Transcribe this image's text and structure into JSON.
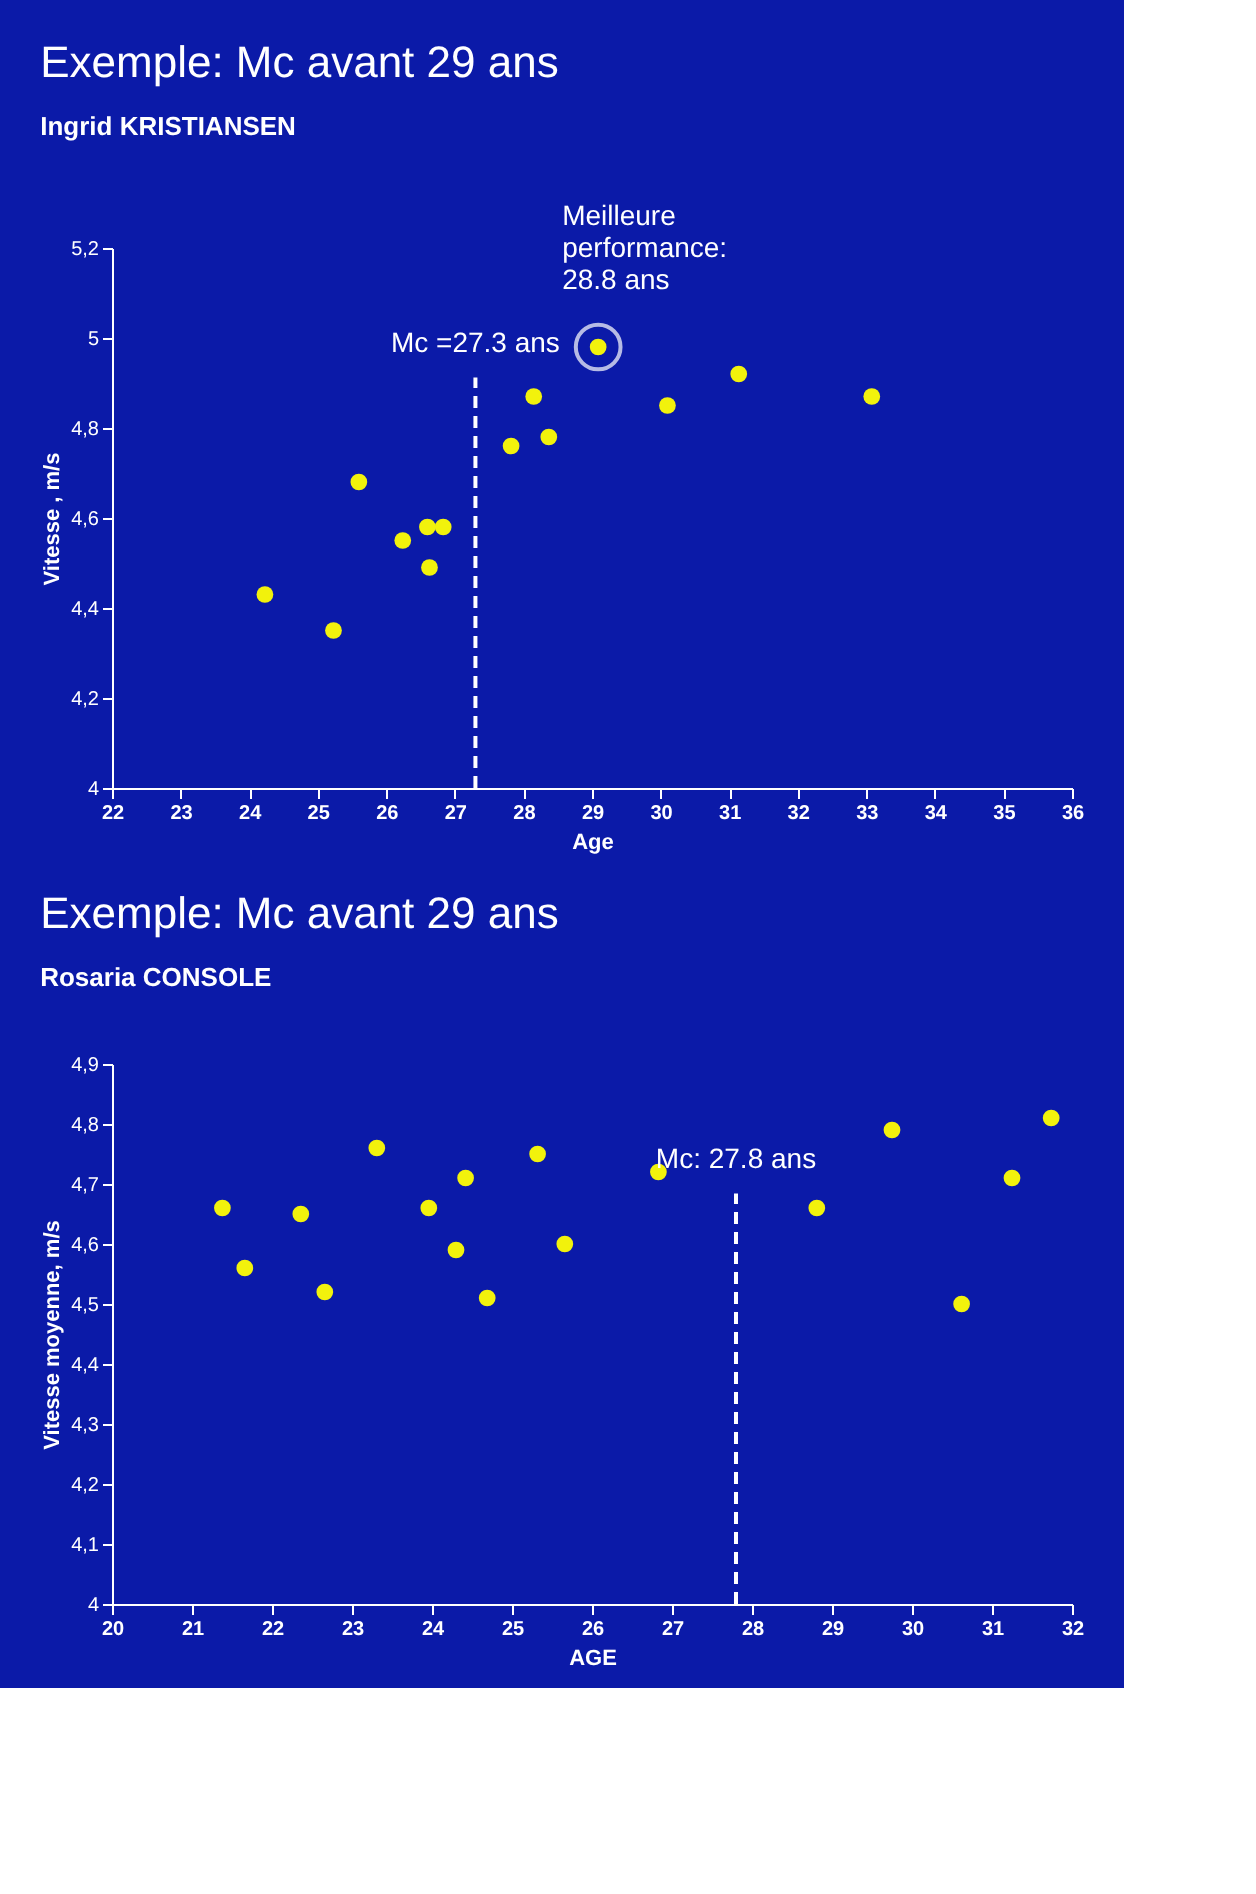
{
  "chart_data": [
    {
      "type": "scatter",
      "title": "Exemple: Mc avant 29 ans",
      "subtitle": "Ingrid KRISTIANSEN",
      "xlabel": "Age",
      "ylabel": "Vitesse , m/s",
      "x": [
        24.23,
        25.23,
        25.6,
        26.24,
        26.6,
        26.63,
        26.83,
        27.82,
        28.15,
        28.37,
        29.09,
        30.1,
        31.14,
        33.08
      ],
      "series": [
        {
          "color": "#f2f20c",
          "values": [
            4.43,
            4.35,
            4.68,
            4.55,
            4.58,
            4.49,
            4.58,
            4.76,
            4.87,
            4.78,
            4.98,
            4.85,
            4.92,
            4.87
          ]
        }
      ],
      "xlim": [
        22,
        36
      ],
      "xticks": [
        22,
        23,
        24,
        25,
        26,
        27,
        28,
        29,
        30,
        31,
        32,
        33,
        34,
        35,
        36
      ],
      "ylim": [
        4,
        5.2
      ],
      "yticks": [
        {
          "value": 4,
          "label": "4"
        },
        {
          "value": 4.2,
          "label": "4,2"
        },
        {
          "value": 4.4,
          "label": "4,4"
        },
        {
          "value": 4.6,
          "label": "4,6"
        },
        {
          "value": 4.8,
          "label": "4,8"
        },
        {
          "value": 5,
          "label": "5"
        },
        {
          "value": 5.2,
          "label": "5,2"
        }
      ],
      "ref_lines": [
        {
          "axis": "x",
          "value": 27.3,
          "label": "Mc =27.3 ans",
          "color": "#ffffff",
          "line_style": "dashed"
        }
      ],
      "annotations": [
        {
          "text": "Meilleure\nperformance:\n28.8 ans",
          "x": 29.09,
          "y": 4.98
        }
      ],
      "grid": false,
      "marker": "circle"
    },
    {
      "type": "scatter",
      "title": "Exemple: Mc avant 29 ans",
      "subtitle": "Rosaria CONSOLE",
      "xlabel": "AGE",
      "ylabel": "Vitesse moyenne, m/s",
      "x": [
        21.38,
        21.66,
        22.36,
        22.66,
        23.31,
        23.96,
        24.3,
        24.42,
        24.69,
        25.32,
        25.66,
        26.83,
        28.81,
        29.75,
        30.62,
        31.25,
        31.74
      ],
      "series": [
        {
          "color": "#f2f20c",
          "values": [
            4.66,
            4.56,
            4.65,
            4.52,
            4.76,
            4.66,
            4.59,
            4.71,
            4.51,
            4.75,
            4.6,
            4.72,
            4.66,
            4.79,
            4.5,
            4.71,
            4.81
          ]
        }
      ],
      "xlim": [
        20,
        32
      ],
      "xticks": [
        20,
        21,
        22,
        23,
        24,
        25,
        26,
        27,
        28,
        29,
        30,
        31,
        32
      ],
      "ylim": [
        4,
        4.9
      ],
      "yticks": [
        {
          "value": 4,
          "label": "4"
        },
        {
          "value": 4.1,
          "label": "4,1"
        },
        {
          "value": 4.2,
          "label": "4,2"
        },
        {
          "value": 4.3,
          "label": "4,3"
        },
        {
          "value": 4.4,
          "label": "4,4"
        },
        {
          "value": 4.5,
          "label": "4,5"
        },
        {
          "value": 4.6,
          "label": "4,6"
        },
        {
          "value": 4.7,
          "label": "4,7"
        },
        {
          "value": 4.8,
          "label": "4,8"
        },
        {
          "value": 4.9,
          "label": "4,9"
        }
      ],
      "ref_lines": [
        {
          "axis": "x",
          "value": 27.8,
          "label": "Mc: 27.8 ans",
          "color": "#ffffff",
          "line_style": "dashed"
        }
      ],
      "grid": false,
      "marker": "circle"
    }
  ]
}
